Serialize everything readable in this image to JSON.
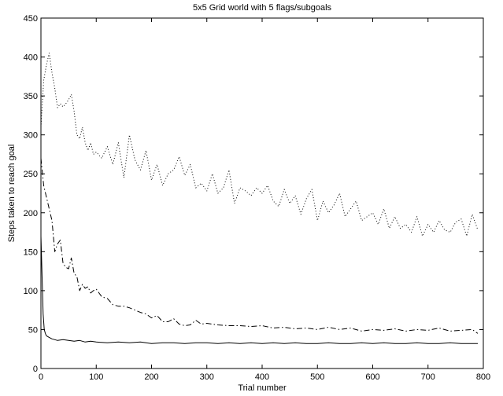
{
  "chart_data": {
    "type": "line",
    "title": "5x5 Grid world with 5 flags/subgoals",
    "xlabel": "Trial number",
    "ylabel": "Steps taken to reach goal",
    "xlim": [
      0,
      800
    ],
    "ylim": [
      0,
      450
    ],
    "xticks": [
      0,
      100,
      200,
      300,
      400,
      500,
      600,
      700,
      800
    ],
    "yticks": [
      0,
      50,
      100,
      150,
      200,
      250,
      300,
      350,
      400,
      450
    ],
    "grid": false,
    "legend": "none",
    "series": [
      {
        "style": "dotted",
        "x": [
          0,
          5,
          10,
          15,
          20,
          25,
          30,
          35,
          40,
          45,
          50,
          55,
          60,
          65,
          70,
          75,
          80,
          85,
          90,
          95,
          100,
          110,
          120,
          130,
          140,
          150,
          160,
          170,
          180,
          190,
          200,
          210,
          220,
          230,
          240,
          250,
          260,
          270,
          280,
          290,
          300,
          310,
          320,
          330,
          340,
          350,
          360,
          370,
          380,
          390,
          400,
          410,
          420,
          430,
          440,
          450,
          460,
          470,
          480,
          490,
          500,
          510,
          520,
          530,
          540,
          550,
          560,
          570,
          580,
          590,
          600,
          610,
          620,
          630,
          640,
          650,
          660,
          670,
          680,
          690,
          700,
          710,
          720,
          730,
          740,
          750,
          760,
          770,
          780,
          790
        ],
        "values": [
          310,
          370,
          390,
          405,
          380,
          360,
          335,
          340,
          336,
          340,
          345,
          352,
          330,
          300,
          295,
          310,
          290,
          280,
          290,
          275,
          278,
          270,
          285,
          262,
          290,
          245,
          300,
          268,
          255,
          280,
          242,
          262,
          235,
          250,
          255,
          272,
          248,
          262,
          232,
          238,
          228,
          250,
          225,
          232,
          255,
          212,
          232,
          228,
          222,
          232,
          225,
          235,
          215,
          208,
          230,
          212,
          222,
          198,
          218,
          230,
          190,
          215,
          200,
          210,
          225,
          195,
          205,
          215,
          190,
          195,
          200,
          185,
          205,
          180,
          195,
          180,
          185,
          175,
          195,
          170,
          185,
          175,
          190,
          178,
          175,
          188,
          192,
          170,
          198,
          178
        ]
      },
      {
        "style": "dash-dot",
        "x": [
          0,
          5,
          10,
          15,
          20,
          25,
          30,
          35,
          40,
          45,
          50,
          55,
          60,
          65,
          70,
          75,
          80,
          85,
          90,
          95,
          100,
          110,
          120,
          130,
          140,
          150,
          160,
          170,
          180,
          190,
          200,
          210,
          220,
          230,
          240,
          250,
          260,
          270,
          280,
          290,
          300,
          320,
          340,
          360,
          380,
          400,
          420,
          440,
          460,
          480,
          500,
          520,
          540,
          560,
          580,
          600,
          620,
          640,
          660,
          680,
          700,
          720,
          740,
          760,
          780,
          790
        ],
        "values": [
          270,
          235,
          220,
          205,
          190,
          150,
          160,
          165,
          135,
          130,
          128,
          142,
          122,
          118,
          100,
          108,
          103,
          105,
          97,
          100,
          102,
          92,
          90,
          82,
          80,
          80,
          78,
          75,
          72,
          70,
          65,
          68,
          60,
          60,
          64,
          57,
          55,
          56,
          62,
          57,
          58,
          56,
          55,
          55,
          54,
          55,
          52,
          53,
          51,
          52,
          50,
          53,
          50,
          52,
          48,
          50,
          49,
          51,
          48,
          50,
          49,
          52,
          48,
          49,
          50,
          45
        ]
      },
      {
        "style": "solid",
        "x": [
          0,
          2,
          4,
          6,
          8,
          10,
          15,
          20,
          25,
          30,
          40,
          50,
          60,
          70,
          80,
          90,
          100,
          120,
          140,
          160,
          180,
          200,
          220,
          240,
          260,
          280,
          300,
          320,
          340,
          360,
          380,
          400,
          420,
          440,
          460,
          480,
          500,
          520,
          540,
          560,
          580,
          600,
          620,
          640,
          660,
          680,
          700,
          720,
          740,
          760,
          780,
          790
        ],
        "values": [
          170,
          120,
          70,
          50,
          45,
          42,
          40,
          38,
          37,
          36,
          37,
          36,
          35,
          36,
          34,
          35,
          34,
          33,
          34,
          33,
          34,
          32,
          33,
          33,
          32,
          33,
          33,
          32,
          33,
          32,
          33,
          32,
          33,
          32,
          33,
          32,
          32,
          33,
          32,
          32,
          33,
          32,
          33,
          32,
          32,
          33,
          32,
          32,
          33,
          32,
          32,
          32
        ]
      }
    ]
  }
}
